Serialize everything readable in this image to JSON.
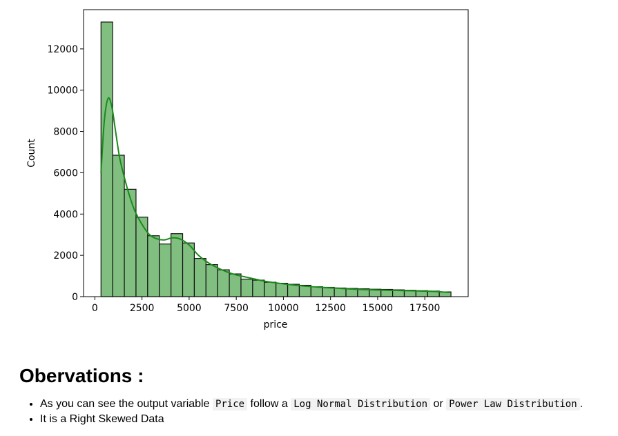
{
  "chart_data": {
    "type": "bar",
    "subtype": "histogram_with_kde",
    "xlabel": "price",
    "ylabel": "Count",
    "xlim": [
      -600,
      19800
    ],
    "ylim": [
      0,
      13900
    ],
    "xticks": [
      0,
      2500,
      5000,
      7500,
      10000,
      12500,
      15000,
      17500
    ],
    "yticks": [
      0,
      2000,
      4000,
      6000,
      8000,
      10000,
      12000
    ],
    "bin_start": 326,
    "bin_width": 618.7,
    "counts": [
      13300,
      6850,
      5200,
      3850,
      2950,
      2550,
      3050,
      2600,
      1850,
      1550,
      1300,
      1100,
      850,
      800,
      700,
      650,
      600,
      550,
      480,
      450,
      420,
      400,
      380,
      360,
      350,
      330,
      310,
      290,
      270,
      230
    ],
    "bar_color": "#80bf80",
    "bar_edge": "#111111",
    "kde": {
      "x": [
        326,
        500,
        700,
        900,
        1100,
        1300,
        1500,
        1800,
        2100,
        2500,
        2900,
        3300,
        3700,
        4100,
        4500,
        5000,
        5500,
        6000,
        6500,
        7000,
        7500,
        8000,
        8500,
        9000,
        10000,
        11000,
        12000,
        13000,
        14000,
        15000,
        16000,
        17000,
        18000,
        18823
      ],
      "y": [
        6000,
        8500,
        9600,
        9200,
        8000,
        6800,
        6000,
        5000,
        4200,
        3500,
        3000,
        2800,
        2750,
        2850,
        2800,
        2500,
        2000,
        1650,
        1400,
        1200,
        1050,
        950,
        850,
        750,
        620,
        520,
        450,
        400,
        350,
        320,
        300,
        280,
        250,
        200
      ],
      "color": "#1a8a1a"
    },
    "grid": false
  },
  "observations": {
    "heading": "Obervations :",
    "item1": {
      "t1": "As you can see the output variable ",
      "c1": "Price",
      "t2": " follow a ",
      "c2": "Log Normal Distribution",
      "t3": " or ",
      "c3": "Power Law Distribution",
      "t4": "."
    },
    "item2": "It is a Right Skewed Data"
  }
}
